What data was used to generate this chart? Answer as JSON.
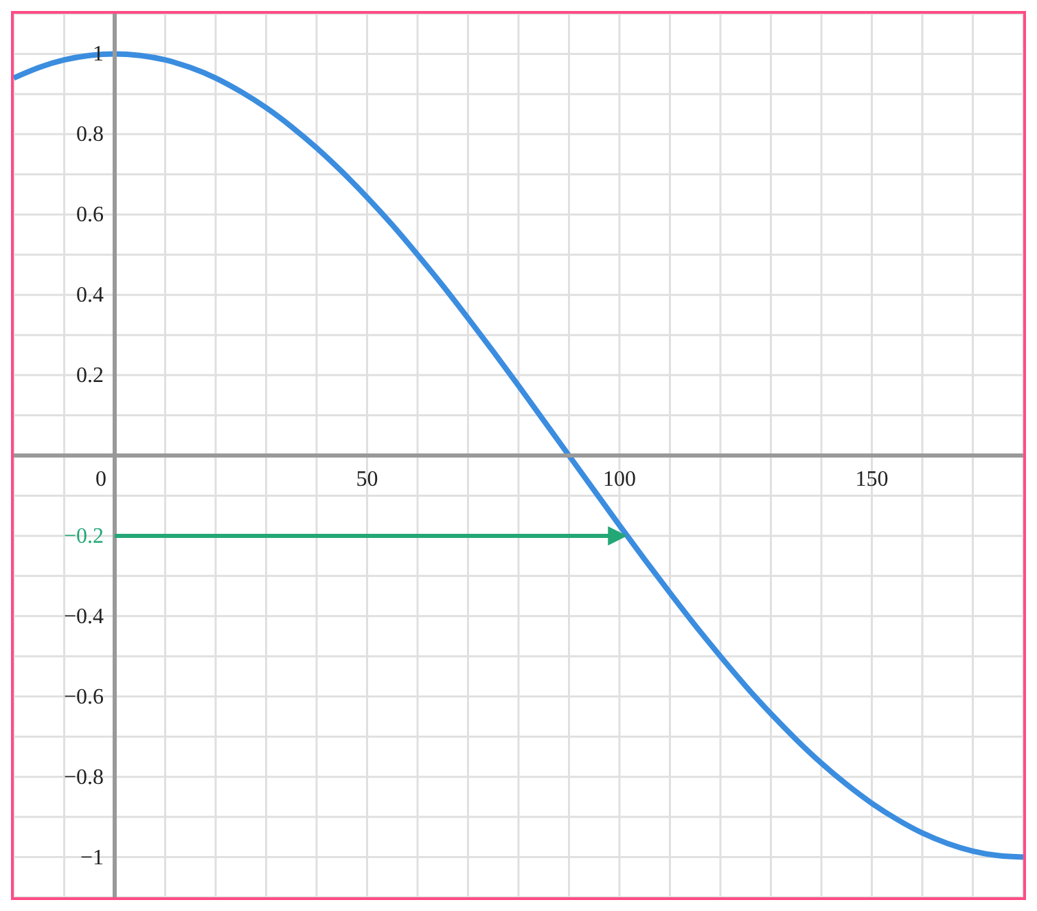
{
  "chart_data": {
    "type": "line",
    "xlim": [
      -20,
      180
    ],
    "ylim": [
      -1.1,
      1.1
    ],
    "xticks": [
      {
        "value": -20,
        "label": null
      },
      {
        "value": -10,
        "label": null
      },
      {
        "value": 0,
        "label": "0"
      },
      {
        "value": 10,
        "label": null
      },
      {
        "value": 20,
        "label": null
      },
      {
        "value": 30,
        "label": null
      },
      {
        "value": 40,
        "label": null
      },
      50,
      {
        "value": 60,
        "label": null
      },
      {
        "value": 70,
        "label": null
      },
      {
        "value": 80,
        "label": null
      },
      {
        "value": 90,
        "label": null
      },
      100,
      {
        "value": 110,
        "label": null
      },
      {
        "value": 120,
        "label": null
      },
      {
        "value": 130,
        "label": null
      },
      {
        "value": 140,
        "label": null
      },
      150,
      {
        "value": 160,
        "label": null
      },
      {
        "value": 170,
        "label": null
      },
      {
        "value": 180,
        "label": null
      }
    ],
    "yticks": [
      {
        "value": -1,
        "label": "−1"
      },
      {
        "value": -0.9,
        "label": null
      },
      {
        "value": -0.8,
        "label": "−0.8"
      },
      {
        "value": -0.7,
        "label": null
      },
      {
        "value": -0.6,
        "label": "−0.6"
      },
      {
        "value": -0.5,
        "label": null
      },
      {
        "value": -0.4,
        "label": "−0.4"
      },
      {
        "value": -0.3,
        "label": null
      },
      {
        "value": -0.2,
        "label": "−0.2"
      },
      {
        "value": -0.1,
        "label": null
      },
      {
        "value": 0,
        "label": null
      },
      {
        "value": 0.1,
        "label": null
      },
      0.2,
      {
        "value": 0.3,
        "label": null
      },
      0.4,
      {
        "value": 0.5,
        "label": null
      },
      0.6,
      {
        "value": 0.7,
        "label": null
      },
      0.8,
      {
        "value": 0.9,
        "label": null
      },
      1
    ],
    "grid": true,
    "marker": "none",
    "line_style": "solid",
    "series": [
      {
        "color": "#3b8ddf",
        "x": [
          -20,
          -15,
          -10,
          -5,
          0,
          5,
          10,
          15,
          20,
          25,
          30,
          35,
          40,
          45,
          50,
          55,
          60,
          65,
          70,
          75,
          80,
          85,
          90,
          95,
          100,
          105,
          110,
          115,
          120,
          125,
          130,
          135,
          140,
          145,
          150,
          155,
          160,
          165,
          170,
          175,
          180
        ],
        "values": [
          0.94,
          0.966,
          0.985,
          0.996,
          1,
          0.996,
          0.985,
          0.966,
          0.94,
          0.906,
          0.866,
          0.819,
          0.766,
          0.707,
          0.643,
          0.574,
          0.5,
          0.423,
          0.342,
          0.259,
          0.174,
          0.087,
          0,
          -0.087,
          -0.174,
          -0.259,
          -0.342,
          -0.423,
          -0.5,
          -0.574,
          -0.643,
          -0.707,
          -0.766,
          -0.819,
          -0.866,
          -0.906,
          -0.94,
          -0.966,
          -0.985,
          -0.996,
          -1
        ]
      }
    ],
    "ref_lines": [
      {
        "axis": "y",
        "value": -0.2,
        "color": "#24a777"
      }
    ]
  }
}
